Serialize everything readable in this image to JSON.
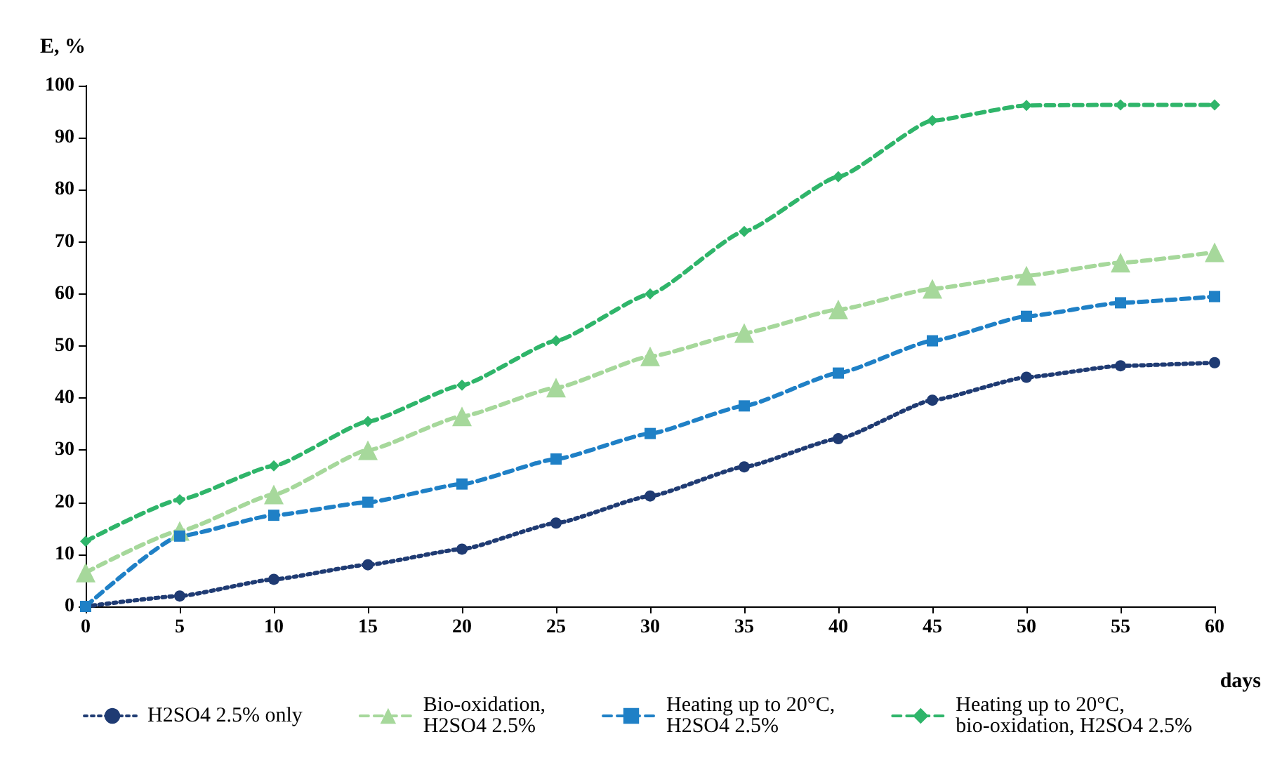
{
  "chart_data": {
    "type": "line",
    "xlabel": "days",
    "ylabel": "E, %",
    "x": [
      0,
      5,
      10,
      15,
      20,
      25,
      30,
      35,
      40,
      45,
      50,
      55,
      60
    ],
    "xlim": [
      0,
      60
    ],
    "xticks": [
      0,
      5,
      10,
      15,
      20,
      25,
      30,
      35,
      40,
      45,
      50,
      55,
      60
    ],
    "ylim": [
      0,
      100
    ],
    "yticks": [
      0,
      10,
      20,
      30,
      40,
      50,
      60,
      70,
      80,
      90,
      100
    ],
    "grid": false,
    "legend": "bottom",
    "series": [
      {
        "name": "H2SO4 2.5% only",
        "color": "#1f3b73",
        "marker": "circle",
        "line_style": "dotted",
        "values": [
          0,
          2,
          5.2,
          8,
          11,
          16,
          21.2,
          26.8,
          32.2,
          39.6,
          44,
          46.2,
          46.8
        ]
      },
      {
        "name": "Bio-oxidation,\nH2SO4 2.5%",
        "color": "#a6d89b",
        "marker": "triangle",
        "line_style": "dashed",
        "values": [
          6.5,
          14.5,
          21.5,
          30,
          36.5,
          42,
          48,
          52.5,
          57,
          61,
          63.5,
          66,
          68
        ]
      },
      {
        "name": "Heating up to 20°C,\nH2SO4 2.5%",
        "color": "#1f80c6",
        "marker": "square",
        "line_style": "dashed",
        "values": [
          0,
          13.5,
          17.5,
          20,
          23.5,
          28.3,
          33.2,
          38.5,
          44.8,
          51,
          55.7,
          58.3,
          59.5
        ]
      },
      {
        "name": "Heating up to 20°C,\nbio-oxidation, H2SO4 2.5%",
        "color": "#2fb56a",
        "marker": "diamond",
        "line_style": "dashed",
        "values": [
          12.5,
          20.5,
          27,
          35.5,
          42.5,
          51,
          60,
          72,
          82.5,
          93.3,
          96.2,
          96.3,
          96.3
        ]
      }
    ]
  }
}
